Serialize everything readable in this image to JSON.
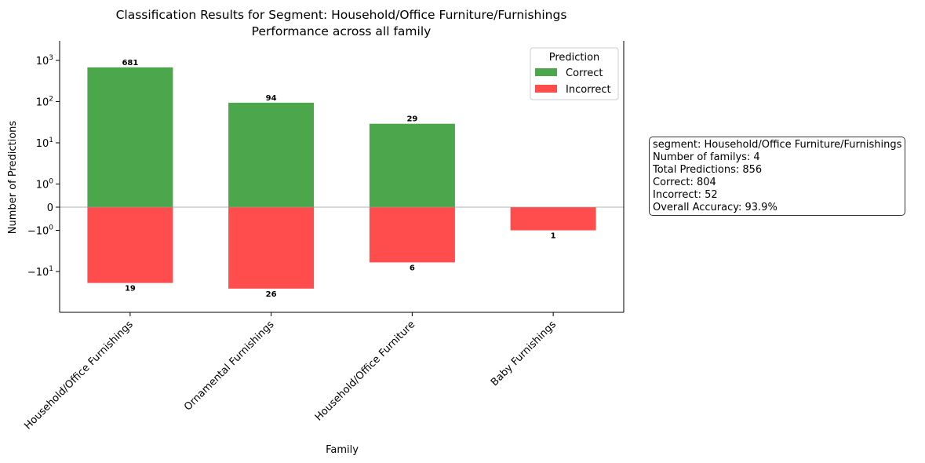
{
  "chart_data": {
    "type": "bar",
    "title": "Classification Results for Segment: Household/Office Furniture/Furnishings",
    "subtitle": "Performance across all family",
    "xlabel": "Family",
    "ylabel": "Number of Predictions",
    "yscale": "symlog",
    "ylim": [
      -25,
      1000
    ],
    "categories": [
      "Household/Office Furnishings",
      "Ornamental Furnishings",
      "Household/Office Furniture",
      "Baby Furnishings"
    ],
    "series": [
      {
        "name": "Correct",
        "color": "#4ca64c",
        "values": [
          681,
          94,
          29,
          0
        ],
        "labels": [
          "681",
          "94",
          "29",
          ""
        ]
      },
      {
        "name": "Incorrect",
        "color": "#ff4d4d",
        "values": [
          -19,
          -26,
          -6,
          -1
        ],
        "labels": [
          "19",
          "26",
          "6",
          "1"
        ]
      }
    ],
    "y_ticks": [
      {
        "value": 1000,
        "base": "10",
        "exp": "3"
      },
      {
        "value": 100,
        "base": "10",
        "exp": "2"
      },
      {
        "value": 10,
        "base": "10",
        "exp": "1"
      },
      {
        "value": 1,
        "base": "10",
        "exp": "0"
      },
      {
        "value": 0,
        "base": "0",
        "exp": ""
      },
      {
        "value": -1,
        "base": "−10",
        "exp": "0"
      },
      {
        "value": -10,
        "base": "−10",
        "exp": "1"
      }
    ],
    "legend": {
      "title": "Prediction",
      "placement": "top-right"
    },
    "grid": false
  },
  "stats_box": {
    "lines": [
      "segment: Household/Office Furniture/Furnishings",
      "Number of familys: 4",
      "Total Predictions: 856",
      "Correct: 804",
      "Incorrect: 52",
      "Overall Accuracy: 93.9%"
    ]
  }
}
